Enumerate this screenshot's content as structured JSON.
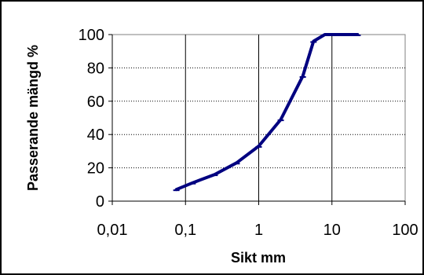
{
  "chart_data": {
    "type": "line",
    "title": "",
    "xlabel": "Sikt mm",
    "ylabel": "Passerande mängd %",
    "x_scale": "log",
    "xlim": [
      0.01,
      100
    ],
    "ylim": [
      0,
      100
    ],
    "x_ticks": [
      0.01,
      0.1,
      1,
      10,
      100
    ],
    "x_tick_labels": [
      "0,01",
      "0,1",
      "1",
      "10",
      "100"
    ],
    "y_ticks": [
      0,
      20,
      40,
      60,
      80,
      100
    ],
    "y_tick_labels": [
      "0",
      "20",
      "40",
      "60",
      "80",
      "100"
    ],
    "grid": true,
    "legend": "none",
    "series": [
      {
        "color": "#000080",
        "x": [
          0.075,
          0.125,
          0.25,
          0.5,
          1,
          2,
          4,
          5.6,
          8,
          11.2,
          16,
          22.4
        ],
        "y": [
          7,
          11,
          16,
          23,
          33,
          49,
          75,
          96,
          100,
          100,
          100,
          100
        ]
      }
    ]
  }
}
